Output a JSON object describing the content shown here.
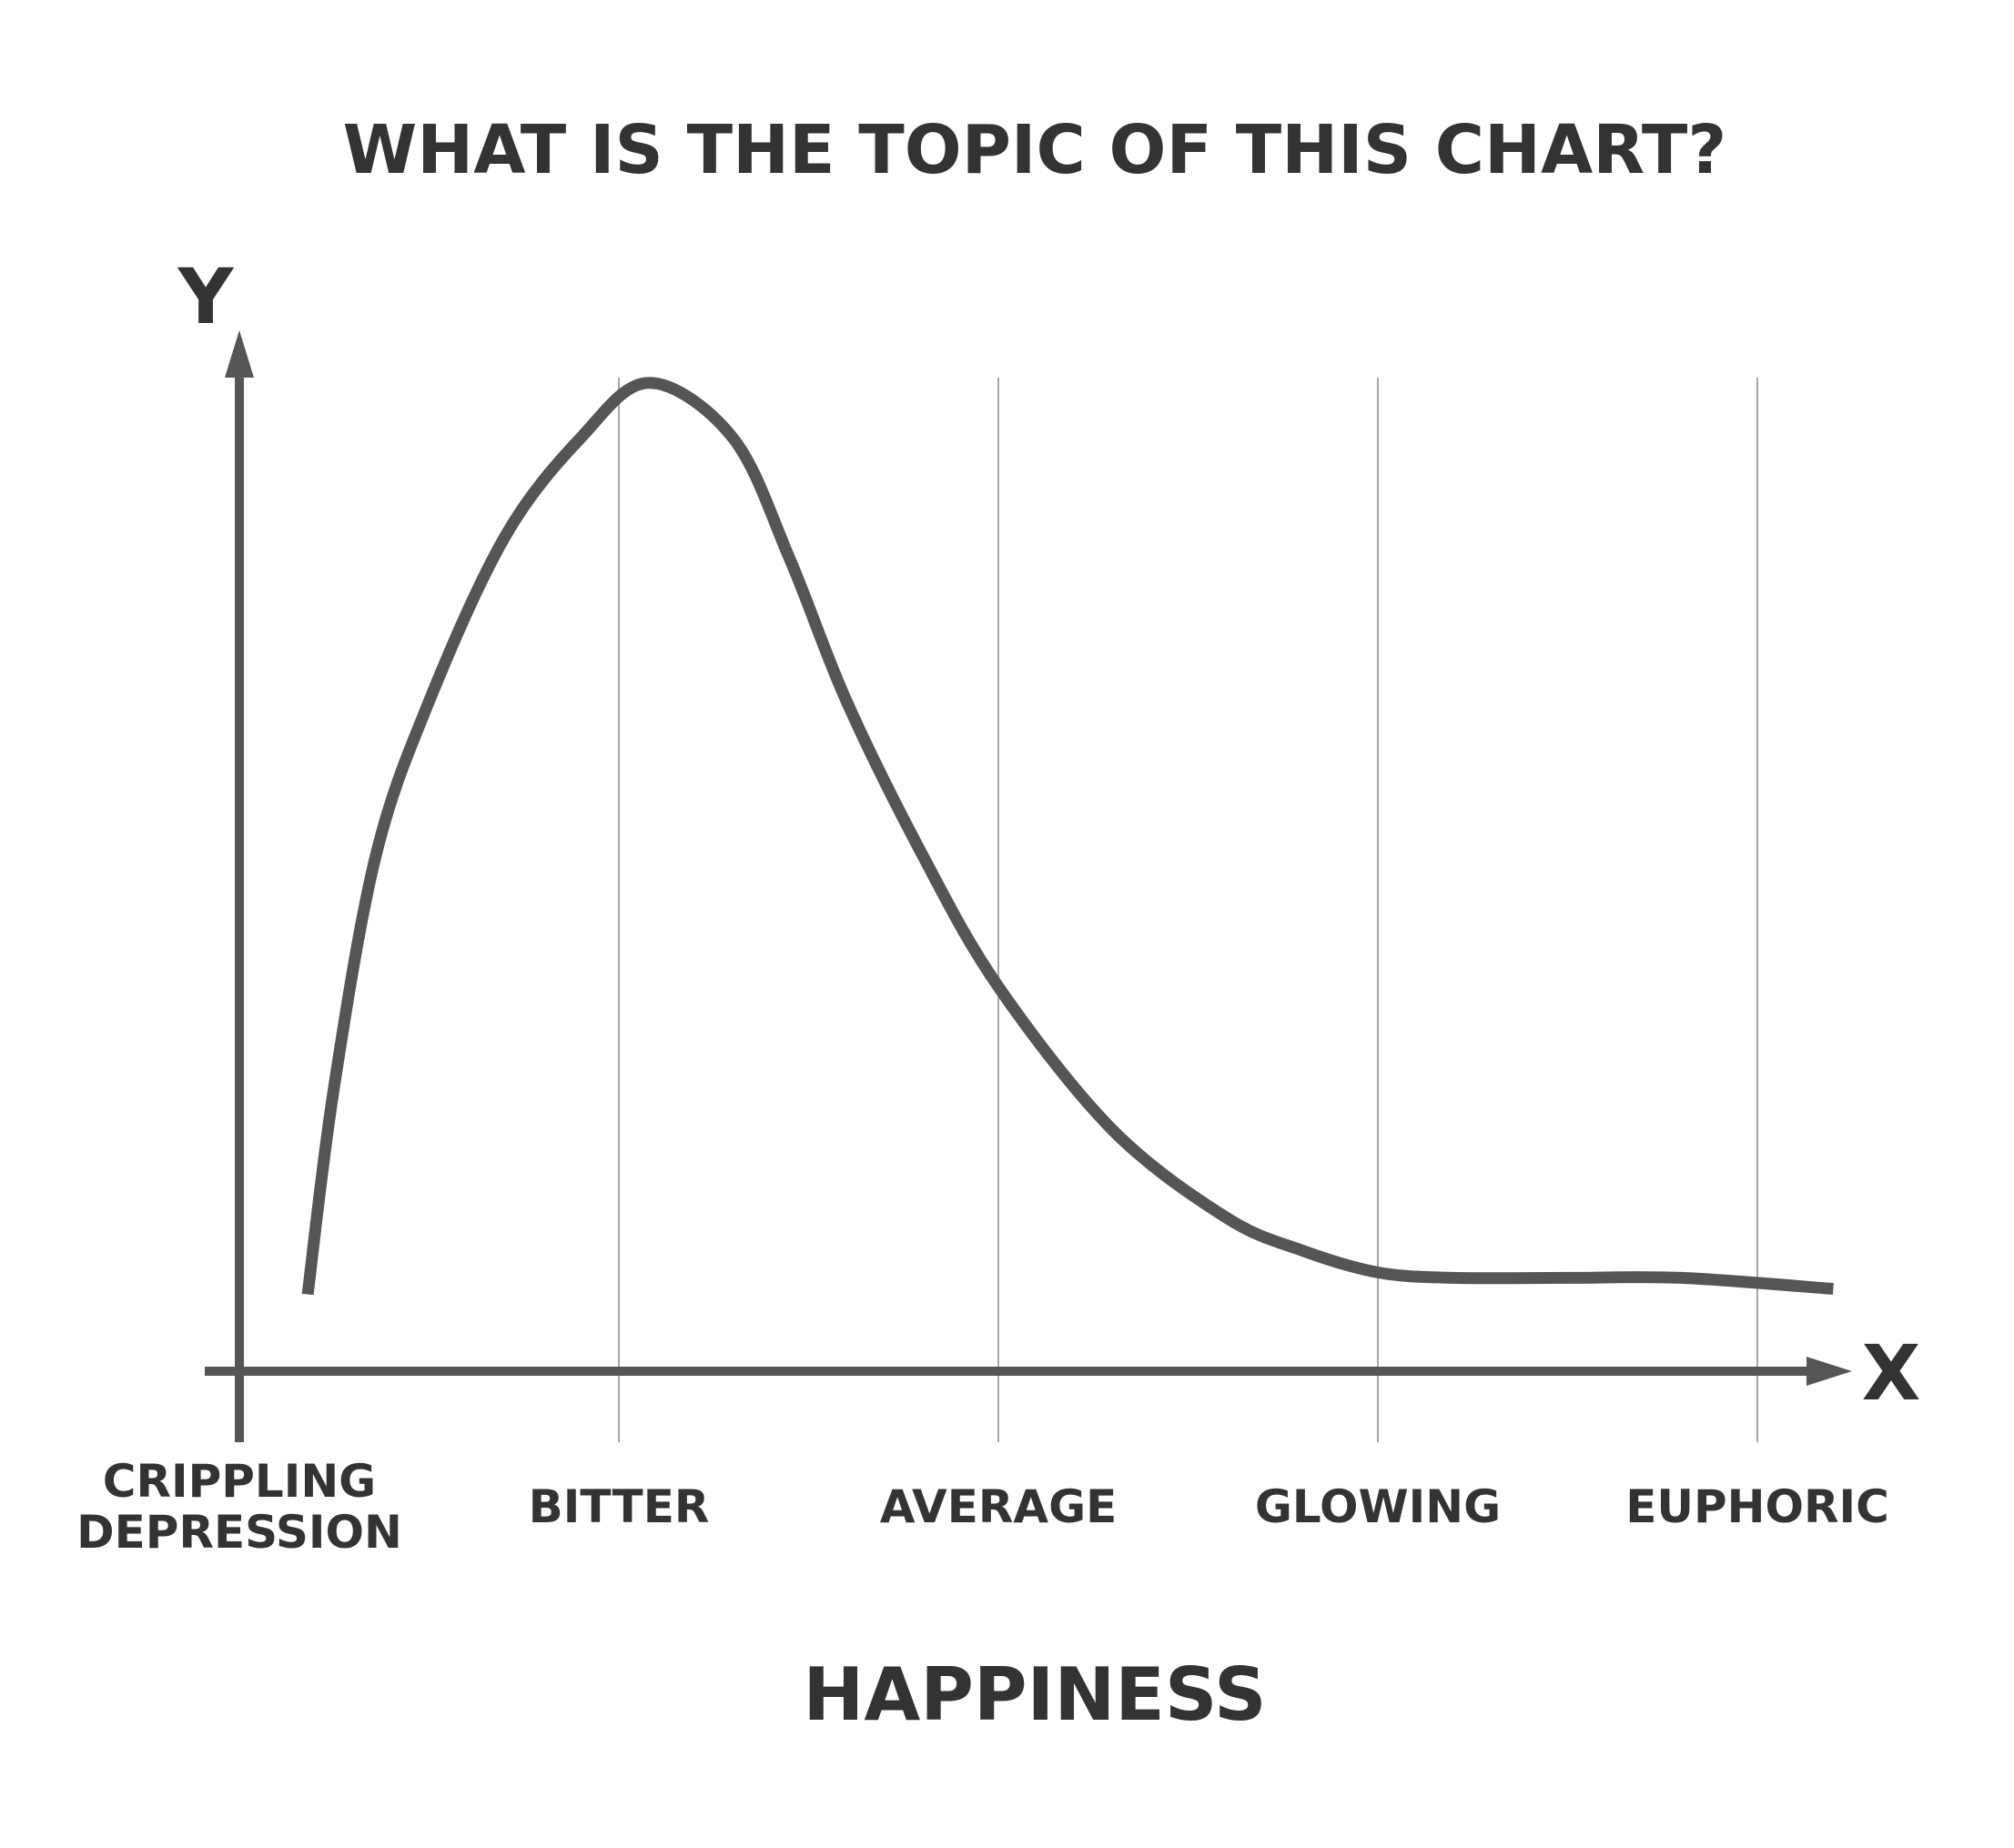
{
  "chart_data": {
    "type": "line",
    "title": "WHAT IS THE TOPIC OF THIS CHART?",
    "xlabel": "HAPPINESS",
    "ylabel": "",
    "x_axis_letter": "X",
    "y_axis_letter": "Y",
    "categories": [
      [
        "CRIPPLING",
        "DEPRESSION"
      ],
      [
        "BITTER"
      ],
      [
        "AVERAGE"
      ],
      [
        "GLOWING"
      ],
      [
        "EUPHORIC"
      ]
    ],
    "xlim": [
      0,
      4
    ],
    "ylim": [
      0,
      100
    ],
    "y_ticks_shown": false,
    "grid": "vertical lines at each category",
    "legend": "none",
    "series": [
      {
        "x": [
          0.18,
          0.25,
          0.36,
          0.5,
          0.7,
          0.9,
          1.08,
          1.3,
          1.45,
          1.6,
          1.8,
          2.0,
          2.3,
          2.6,
          2.8,
          3.0,
          3.2,
          3.5,
          3.8,
          4.2
        ],
        "y": [
          7,
          26,
          47,
          61,
          76,
          85,
          90,
          85,
          74,
          61,
          47,
          35,
          22,
          14,
          11,
          9,
          8.5,
          8.5,
          8.5,
          7.5
        ]
      }
    ],
    "colors": {
      "ink": "#555555",
      "grid": "#8a8a8a",
      "text": "#333333"
    }
  }
}
